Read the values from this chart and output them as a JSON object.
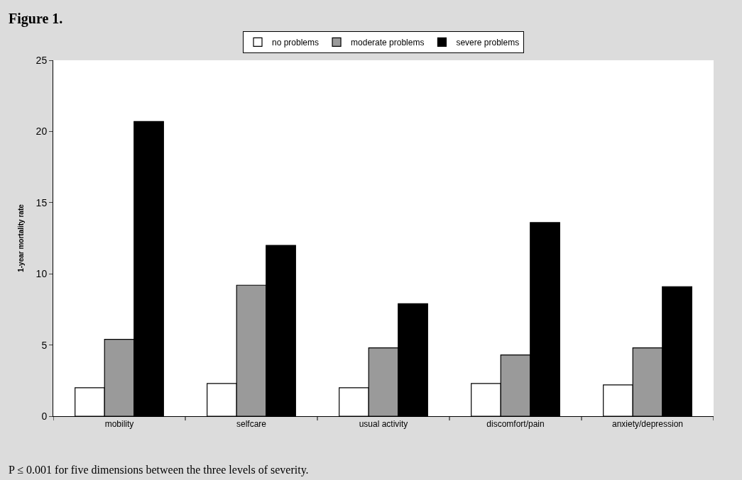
{
  "chart_data": {
    "type": "bar",
    "title": "Figure 1.",
    "ylabel": "1-year mortality rate",
    "categories": [
      "mobility",
      "selfcare",
      "usual activity",
      "discomfort/pain",
      "anxiety/depression"
    ],
    "series": [
      {
        "name": "no problems",
        "color": "#ffffff",
        "values": [
          2.0,
          2.3,
          2.0,
          2.3,
          2.2
        ]
      },
      {
        "name": "moderate problems",
        "color": "#9a9a9a",
        "values": [
          5.4,
          9.2,
          4.8,
          4.3,
          4.8
        ]
      },
      {
        "name": "severe problems",
        "color": "#000000",
        "values": [
          20.7,
          12.0,
          7.9,
          13.6,
          9.1
        ]
      }
    ],
    "ylim": [
      0,
      25
    ],
    "yticks": [
      0,
      5,
      10,
      15,
      20,
      25
    ],
    "grid": false,
    "legend": "top",
    "annotations": [
      "P ≤ 0.001 for five dimensions between the three levels of severity."
    ]
  }
}
